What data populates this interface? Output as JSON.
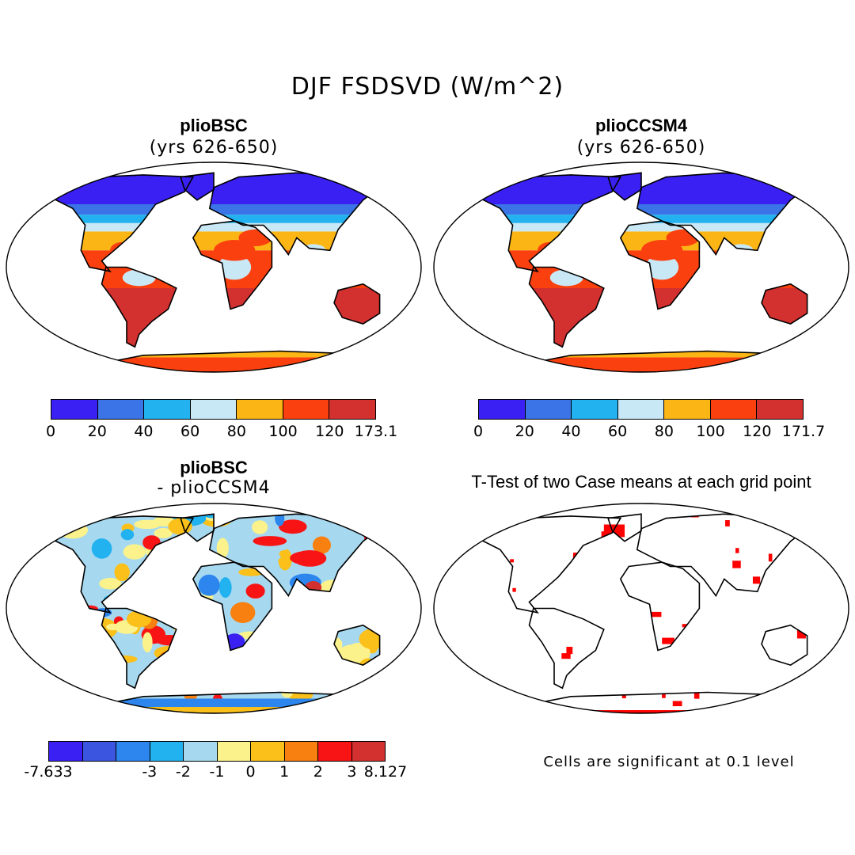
{
  "main_title": "DJF FSDSVD (W/m^2)",
  "panels": {
    "top_left": {
      "title": "plioBSC",
      "subtitle": "(yrs 626-650)"
    },
    "top_right": {
      "title": "plioCCSM4",
      "subtitle": "(yrs 626-650)"
    },
    "bottom_left": {
      "title": "plioBSC",
      "subtitle": "- plioCCSM4"
    },
    "bottom_right": {
      "title": "T-Test of two Case means at each grid point",
      "note": "Cells are significant at 0.1 level"
    }
  },
  "colorbars": {
    "abs_left": {
      "colors": [
        "#3a20f2",
        "#3b74e6",
        "#22b2f0",
        "#c9e8f6",
        "#fbb615",
        "#fb4010",
        "#d33030"
      ],
      "labels": [
        "0",
        "20",
        "40",
        "60",
        "80",
        "100",
        "120",
        "173.1"
      ]
    },
    "abs_right": {
      "colors": [
        "#3a20f2",
        "#3b74e6",
        "#22b2f0",
        "#c9e8f6",
        "#fbb615",
        "#fb4010",
        "#d33030"
      ],
      "labels": [
        "0",
        "20",
        "40",
        "60",
        "80",
        "100",
        "120",
        "171.7"
      ]
    },
    "diff": {
      "colors": [
        "#3a20f2",
        "#3b55e0",
        "#2c86ee",
        "#22b2f0",
        "#a6d8f0",
        "#fbf28c",
        "#fbc01a",
        "#f88010",
        "#f81414",
        "#d33030"
      ],
      "labels": [
        "-7.633",
        "-3",
        "-2",
        "-1",
        "0",
        "1",
        "2",
        "3",
        "8.127"
      ]
    }
  },
  "colors": {
    "significance": "#ff0000",
    "cold": "#3a20f2",
    "hot": "#d33030"
  }
}
